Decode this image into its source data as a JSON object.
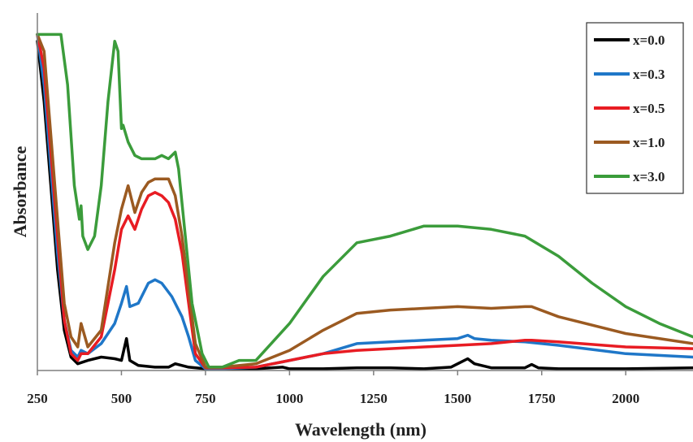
{
  "chart_data": {
    "type": "line",
    "title": "",
    "xlabel": "Wavelength (nm)",
    "ylabel": "Absorbance",
    "xlim": [
      250,
      2200
    ],
    "ylim": [
      0,
      1
    ],
    "xticks": [
      250,
      500,
      750,
      1000,
      1250,
      1500,
      1750,
      2000
    ],
    "grid": false,
    "legend": "top-right",
    "series": [
      {
        "name": "x=0.0",
        "color": "#000000",
        "x": [
          250,
          270,
          290,
          310,
          330,
          350,
          370,
          400,
          440,
          480,
          500,
          515,
          525,
          550,
          600,
          640,
          660,
          700,
          750,
          800,
          900,
          980,
          1000,
          1100,
          1200,
          1300,
          1400,
          1480,
          1510,
          1530,
          1550,
          1600,
          1700,
          1720,
          1740,
          1800,
          2000,
          2200
        ],
        "values": [
          0.98,
          0.8,
          0.55,
          0.3,
          0.12,
          0.04,
          0.02,
          0.03,
          0.04,
          0.035,
          0.03,
          0.095,
          0.03,
          0.015,
          0.01,
          0.01,
          0.02,
          0.01,
          0.005,
          0.005,
          0.005,
          0.01,
          0.005,
          0.005,
          0.008,
          0.008,
          0.005,
          0.01,
          0.025,
          0.035,
          0.02,
          0.008,
          0.008,
          0.018,
          0.008,
          0.005,
          0.005,
          0.008
        ]
      },
      {
        "name": "x=0.3",
        "color": "#1f77c8",
        "x": [
          250,
          270,
          290,
          310,
          330,
          350,
          370,
          380,
          400,
          440,
          480,
          500,
          515,
          525,
          550,
          580,
          600,
          620,
          650,
          680,
          700,
          720,
          750,
          800,
          900,
          1000,
          1100,
          1200,
          1300,
          1400,
          1500,
          1530,
          1550,
          1600,
          1700,
          1800,
          2000,
          2200
        ],
        "values": [
          1.0,
          0.85,
          0.6,
          0.35,
          0.15,
          0.06,
          0.04,
          0.06,
          0.05,
          0.08,
          0.14,
          0.2,
          0.25,
          0.19,
          0.2,
          0.26,
          0.27,
          0.26,
          0.22,
          0.16,
          0.1,
          0.03,
          0.005,
          0.005,
          0.01,
          0.03,
          0.05,
          0.08,
          0.085,
          0.09,
          0.095,
          0.105,
          0.095,
          0.09,
          0.085,
          0.075,
          0.05,
          0.04
        ]
      },
      {
        "name": "x=0.5",
        "color": "#e81c23",
        "x": [
          250,
          270,
          290,
          310,
          330,
          350,
          370,
          380,
          400,
          440,
          480,
          500,
          520,
          540,
          560,
          580,
          600,
          620,
          640,
          660,
          680,
          700,
          720,
          750,
          800,
          900,
          1000,
          1100,
          1200,
          1300,
          1400,
          1500,
          1600,
          1700,
          1720,
          1800,
          2000,
          2200
        ],
        "values": [
          1.0,
          0.9,
          0.65,
          0.4,
          0.15,
          0.05,
          0.03,
          0.05,
          0.05,
          0.1,
          0.3,
          0.42,
          0.46,
          0.42,
          0.48,
          0.52,
          0.53,
          0.52,
          0.5,
          0.45,
          0.35,
          0.2,
          0.05,
          0.008,
          0.008,
          0.01,
          0.03,
          0.05,
          0.06,
          0.065,
          0.07,
          0.075,
          0.08,
          0.09,
          0.09,
          0.085,
          0.07,
          0.065
        ]
      },
      {
        "name": "x=1.0",
        "color": "#9b5a21",
        "x": [
          250,
          270,
          290,
          310,
          330,
          350,
          370,
          380,
          400,
          440,
          480,
          500,
          520,
          540,
          560,
          580,
          600,
          620,
          640,
          660,
          680,
          700,
          720,
          750,
          800,
          900,
          1000,
          1100,
          1200,
          1300,
          1400,
          1500,
          1600,
          1700,
          1720,
          1800,
          2000,
          2200
        ],
        "values": [
          1.0,
          0.95,
          0.7,
          0.45,
          0.2,
          0.1,
          0.07,
          0.14,
          0.07,
          0.12,
          0.38,
          0.48,
          0.55,
          0.47,
          0.53,
          0.56,
          0.57,
          0.57,
          0.57,
          0.52,
          0.4,
          0.24,
          0.08,
          0.01,
          0.01,
          0.02,
          0.06,
          0.12,
          0.17,
          0.18,
          0.185,
          0.19,
          0.185,
          0.19,
          0.19,
          0.16,
          0.11,
          0.08
        ]
      },
      {
        "name": "x=3.0",
        "color": "#3b9c3b",
        "x": [
          250,
          280,
          300,
          320,
          340,
          360,
          375,
          380,
          385,
          400,
          420,
          440,
          460,
          480,
          490,
          500,
          505,
          520,
          540,
          560,
          600,
          620,
          640,
          660,
          670,
          690,
          710,
          740,
          760,
          800,
          850,
          900,
          1000,
          1100,
          1200,
          1300,
          1400,
          1500,
          1600,
          1700,
          1800,
          1900,
          2000,
          2100,
          2200
        ],
        "values": [
          1.0,
          1.0,
          1.0,
          1.0,
          0.85,
          0.55,
          0.45,
          0.49,
          0.4,
          0.36,
          0.4,
          0.55,
          0.8,
          0.98,
          0.95,
          0.72,
          0.73,
          0.68,
          0.64,
          0.63,
          0.63,
          0.64,
          0.63,
          0.65,
          0.6,
          0.4,
          0.2,
          0.05,
          0.01,
          0.01,
          0.03,
          0.03,
          0.14,
          0.28,
          0.38,
          0.4,
          0.43,
          0.43,
          0.42,
          0.4,
          0.34,
          0.26,
          0.19,
          0.14,
          0.1
        ]
      }
    ]
  }
}
